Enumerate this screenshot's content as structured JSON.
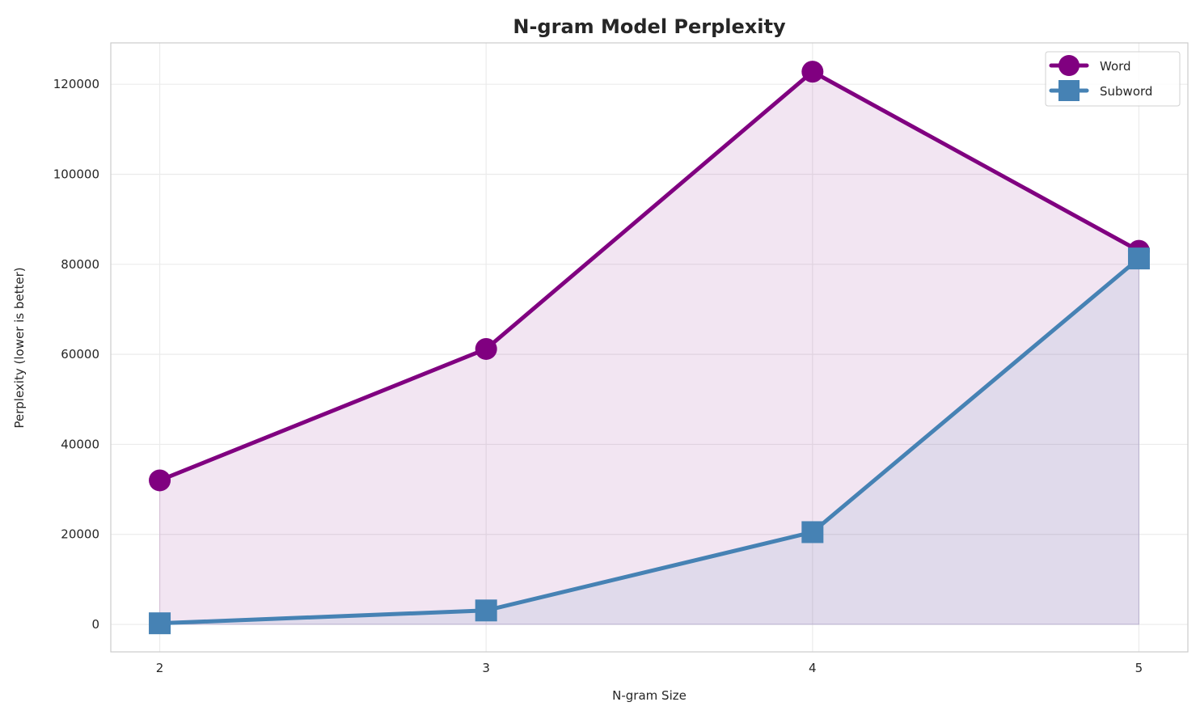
{
  "chart_data": {
    "type": "line",
    "title": "N-gram Model Perplexity",
    "xlabel": "N-gram Size",
    "ylabel": "Perplexity (lower is better)",
    "x": [
      2,
      3,
      4,
      5
    ],
    "xticks": [
      "2",
      "3",
      "4",
      "5"
    ],
    "yticks": [
      "0",
      "20000",
      "40000",
      "60000",
      "80000",
      "100000",
      "120000"
    ],
    "xlim": [
      1.85,
      5.15
    ],
    "ylim": [
      -6100,
      129200
    ],
    "grid": true,
    "legend_position": "top-right",
    "series": [
      {
        "name": "Word",
        "values": [
          32000,
          61200,
          122800,
          83000
        ],
        "color": "#800080",
        "marker": "circle",
        "fill": true
      },
      {
        "name": "Subword",
        "values": [
          250,
          3100,
          20500,
          81300
        ],
        "color": "#4682b4",
        "marker": "square",
        "fill": true
      }
    ]
  }
}
